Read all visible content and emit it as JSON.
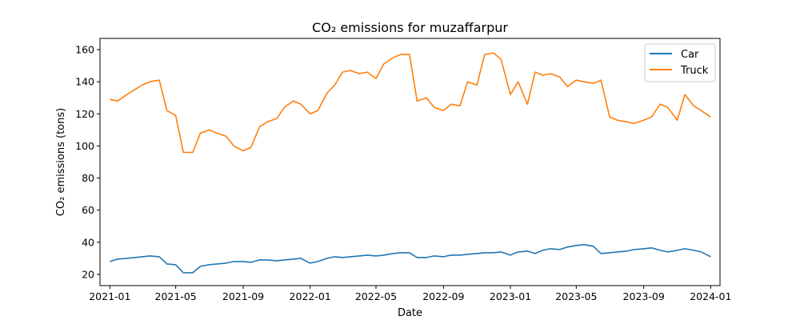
{
  "chart_data": {
    "type": "line",
    "title": "CO₂ emissions for muzaffarpur",
    "xlabel": "Date",
    "ylabel": "CO₂ emissions (tons)",
    "x_range": [
      "2020-12-14",
      "2024-01-18"
    ],
    "ylim": [
      13,
      167
    ],
    "y_ticks": [
      20,
      40,
      60,
      80,
      100,
      120,
      140,
      160
    ],
    "x_ticks": [
      "2021-01",
      "2021-05",
      "2021-09",
      "2022-01",
      "2022-05",
      "2022-09",
      "2023-01",
      "2023-05",
      "2023-09",
      "2024-01"
    ],
    "grid": false,
    "legend_position": "top-right",
    "series": [
      {
        "name": "Car",
        "color": "#1f77b4",
        "x": [
          "2021-01-01",
          "2021-01-15",
          "2021-02-01",
          "2021-02-15",
          "2021-03-01",
          "2021-03-15",
          "2021-04-01",
          "2021-04-15",
          "2021-05-01",
          "2021-05-15",
          "2021-06-01",
          "2021-06-15",
          "2021-07-01",
          "2021-07-15",
          "2021-08-01",
          "2021-08-15",
          "2021-09-01",
          "2021-09-15",
          "2021-10-01",
          "2021-10-15",
          "2021-11-01",
          "2021-11-15",
          "2021-12-01",
          "2021-12-15",
          "2022-01-01",
          "2022-01-15",
          "2022-02-01",
          "2022-02-15",
          "2022-03-01",
          "2022-03-15",
          "2022-04-01",
          "2022-04-15",
          "2022-05-01",
          "2022-05-15",
          "2022-06-01",
          "2022-06-15",
          "2022-07-01",
          "2022-07-15",
          "2022-08-01",
          "2022-08-15",
          "2022-09-01",
          "2022-09-15",
          "2022-10-01",
          "2022-10-15",
          "2022-11-01",
          "2022-11-15",
          "2022-12-01",
          "2022-12-15",
          "2023-01-01",
          "2023-01-15",
          "2023-02-01",
          "2023-02-15",
          "2023-03-01",
          "2023-03-15",
          "2023-04-01",
          "2023-04-15",
          "2023-05-01",
          "2023-05-15",
          "2023-06-01",
          "2023-06-15",
          "2023-07-01",
          "2023-07-15",
          "2023-08-01",
          "2023-08-15",
          "2023-09-01",
          "2023-09-15",
          "2023-10-01",
          "2023-10-15",
          "2023-11-01",
          "2023-11-15",
          "2023-12-01",
          "2023-12-15",
          "2024-01-01"
        ],
        "values": [
          28,
          29.5,
          30,
          30.5,
          31,
          31.5,
          31,
          26.5,
          26,
          21,
          21,
          25,
          26,
          26.5,
          27,
          28,
          28,
          27.5,
          29,
          29,
          28.5,
          29,
          29.5,
          30,
          27,
          28,
          30,
          31,
          30.5,
          31,
          31.5,
          32,
          31.5,
          32,
          33,
          33.5,
          33.5,
          30.5,
          30.5,
          31.5,
          31,
          32,
          32,
          32.5,
          33,
          33.5,
          33.5,
          34,
          32,
          34,
          34.5,
          33,
          35,
          36,
          35.5,
          37,
          38,
          38.5,
          37.5,
          33,
          33.5,
          34,
          34.5,
          35.5,
          36,
          36.5,
          35,
          34,
          35,
          36,
          35,
          34,
          31
        ]
      },
      {
        "name": "Truck",
        "color": "#ff7f0e",
        "x": [
          "2021-01-01",
          "2021-01-15",
          "2021-02-01",
          "2021-02-15",
          "2021-03-01",
          "2021-03-15",
          "2021-04-01",
          "2021-04-15",
          "2021-05-01",
          "2021-05-15",
          "2021-06-01",
          "2021-06-15",
          "2021-07-01",
          "2021-07-15",
          "2021-08-01",
          "2021-08-15",
          "2021-09-01",
          "2021-09-15",
          "2021-10-01",
          "2021-10-15",
          "2021-11-01",
          "2021-11-15",
          "2021-12-01",
          "2021-12-15",
          "2022-01-01",
          "2022-01-15",
          "2022-02-01",
          "2022-02-15",
          "2022-03-01",
          "2022-03-15",
          "2022-04-01",
          "2022-04-15",
          "2022-05-01",
          "2022-05-15",
          "2022-06-01",
          "2022-06-15",
          "2022-07-01",
          "2022-07-15",
          "2022-08-01",
          "2022-08-15",
          "2022-09-01",
          "2022-09-15",
          "2022-10-01",
          "2022-10-15",
          "2022-11-01",
          "2022-11-15",
          "2022-12-01",
          "2022-12-15",
          "2023-01-01",
          "2023-01-15",
          "2023-02-01",
          "2023-02-15",
          "2023-03-01",
          "2023-03-15",
          "2023-04-01",
          "2023-04-15",
          "2023-05-01",
          "2023-05-15",
          "2023-06-01",
          "2023-06-15",
          "2023-07-01",
          "2023-07-15",
          "2023-08-01",
          "2023-08-15",
          "2023-09-01",
          "2023-09-15",
          "2023-10-01",
          "2023-10-15",
          "2023-11-01",
          "2023-11-15",
          "2023-12-01",
          "2023-12-15",
          "2024-01-01"
        ],
        "values": [
          129,
          128,
          132,
          135,
          138,
          140,
          141,
          122,
          119,
          96,
          96,
          108,
          110,
          108,
          106,
          100,
          97,
          99,
          112,
          115,
          117,
          124,
          128,
          126,
          120,
          122,
          133,
          138,
          146,
          147,
          145,
          146,
          142,
          151,
          155,
          157,
          157,
          128,
          130,
          124,
          122,
          126,
          125,
          140,
          138,
          157,
          158,
          154,
          132,
          140,
          126,
          146,
          144,
          145,
          143,
          137,
          141,
          140,
          139,
          141,
          118,
          116,
          115,
          114,
          116,
          118,
          126,
          124,
          116,
          132,
          125,
          122,
          118
        ]
      }
    ]
  }
}
